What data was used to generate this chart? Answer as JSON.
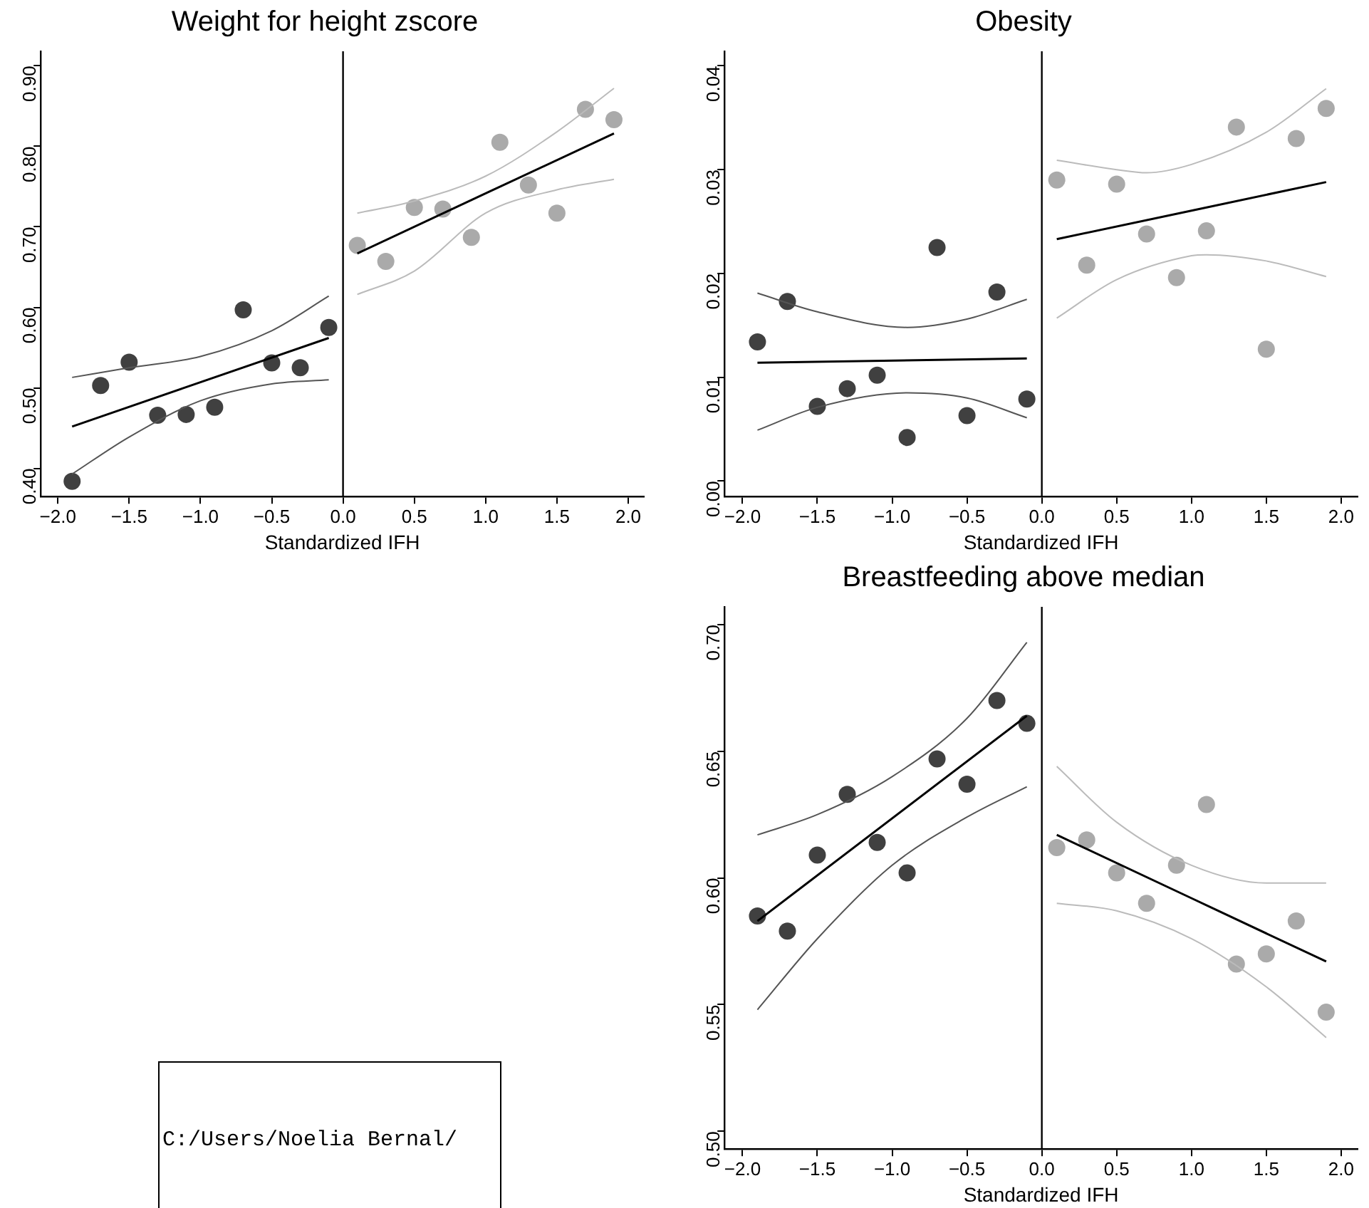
{
  "chart_data": [
    {
      "type": "scatter",
      "title": "Weight for height zscore",
      "xlabel": "Standardized IFH",
      "grid": false,
      "legend": false,
      "xlim": [
        -2.12,
        2.11
      ],
      "ylim": [
        0.365,
        0.918
      ],
      "xticks": [
        {
          "value": -2,
          "label": "−2.0"
        },
        {
          "value": -1.5,
          "label": "−1.5"
        },
        {
          "value": -1,
          "label": "−1.0"
        },
        {
          "value": -0.5,
          "label": "−0.5"
        },
        {
          "value": 0,
          "label": "0.0"
        },
        {
          "value": 0.5,
          "label": "0.5"
        },
        {
          "value": 1,
          "label": "1.0"
        },
        {
          "value": 1.5,
          "label": "1.5"
        },
        {
          "value": 2,
          "label": "2.0"
        }
      ],
      "yticks": [
        {
          "value": 0.4,
          "label": "0.40"
        },
        {
          "value": 0.5,
          "label": "0.50"
        },
        {
          "value": 0.6,
          "label": "0.60"
        },
        {
          "value": 0.7,
          "label": "0.70"
        },
        {
          "value": 0.8,
          "label": "0.80"
        },
        {
          "value": 0.9,
          "label": "0.90"
        }
      ],
      "ref_lines": [
        {
          "axis": "x",
          "value": 0,
          "color": "#000000"
        }
      ],
      "series": [
        {
          "type": "scatter",
          "marker": "circle",
          "color": "#404040",
          "x": [
            -1.9,
            -1.7,
            -1.5,
            -1.3,
            -1.1,
            -0.9,
            -0.7,
            -0.5,
            -0.3,
            -0.1
          ],
          "values": [
            0.384,
            0.503,
            0.532,
            0.466,
            0.467,
            0.476,
            0.597,
            0.531,
            0.525,
            0.575
          ]
        },
        {
          "type": "scatter",
          "marker": "circle",
          "color": "#aaaaaa",
          "x": [
            0.1,
            0.3,
            0.5,
            0.7,
            0.9,
            1.1,
            1.3,
            1.5,
            1.7,
            1.9
          ],
          "values": [
            0.677,
            0.657,
            0.724,
            0.722,
            0.687,
            0.805,
            0.752,
            0.717,
            0.846,
            0.833
          ]
        },
        {
          "type": "line",
          "marker": "none",
          "color": "#555555",
          "x": [
            -1.9,
            -1.5,
            -1,
            -0.5,
            -0.1
          ],
          "values": [
            0.513,
            0.525,
            0.539,
            0.571,
            0.614
          ]
        },
        {
          "type": "line",
          "marker": "none",
          "color": "#555555",
          "x": [
            -1.9,
            -1.5,
            -1,
            -0.5,
            -0.1
          ],
          "values": [
            0.393,
            0.439,
            0.484,
            0.505,
            0.51
          ]
        },
        {
          "type": "line",
          "marker": "none",
          "color": "#bbbbbb",
          "x": [
            0.1,
            0.5,
            1,
            1.5,
            1.9
          ],
          "values": [
            0.717,
            0.732,
            0.763,
            0.818,
            0.872
          ]
        },
        {
          "type": "line",
          "marker": "none",
          "color": "#bbbbbb",
          "x": [
            0.1,
            0.5,
            1,
            1.5,
            1.9
          ],
          "values": [
            0.616,
            0.645,
            0.717,
            0.746,
            0.759
          ]
        },
        {
          "type": "line",
          "marker": "none",
          "color": "#000000",
          "x": [
            -1.9,
            -0.1
          ],
          "values": [
            0.452,
            0.562
          ]
        },
        {
          "type": "line",
          "marker": "none",
          "color": "#000000",
          "x": [
            0.1,
            1.9
          ],
          "values": [
            0.667,
            0.816
          ]
        }
      ]
    },
    {
      "type": "scatter",
      "title": "Obesity",
      "xlabel": "Standardized IFH",
      "grid": false,
      "legend": false,
      "xlim": [
        -2.12,
        2.11
      ],
      "ylim": [
        -0.0015,
        0.0414
      ],
      "xticks": [
        {
          "value": -2,
          "label": "−2.0"
        },
        {
          "value": -1.5,
          "label": "−1.5"
        },
        {
          "value": -1,
          "label": "−1.0"
        },
        {
          "value": -0.5,
          "label": "−0.5"
        },
        {
          "value": 0,
          "label": "0.0"
        },
        {
          "value": 0.5,
          "label": "0.5"
        },
        {
          "value": 1,
          "label": "1.0"
        },
        {
          "value": 1.5,
          "label": "1.5"
        },
        {
          "value": 2,
          "label": "2.0"
        }
      ],
      "yticks": [
        {
          "value": 0,
          "label": "0.00"
        },
        {
          "value": 0.01,
          "label": "0.01"
        },
        {
          "value": 0.02,
          "label": "0.02"
        },
        {
          "value": 0.03,
          "label": "0.03"
        },
        {
          "value": 0.04,
          "label": "0.04"
        }
      ],
      "ref_lines": [
        {
          "axis": "x",
          "value": 0,
          "color": "#000000"
        }
      ],
      "series": [
        {
          "type": "scatter",
          "marker": "circle",
          "color": "#404040",
          "x": [
            -1.9,
            -1.7,
            -1.5,
            -1.3,
            -1.1,
            -0.9,
            -0.7,
            -0.5,
            -0.3,
            -0.1
          ],
          "values": [
            0.0134,
            0.0173,
            0.0072,
            0.0089,
            0.0102,
            0.0042,
            0.0225,
            0.0063,
            0.0182,
            0.0079
          ]
        },
        {
          "type": "scatter",
          "marker": "circle",
          "color": "#aaaaaa",
          "x": [
            0.1,
            0.3,
            0.5,
            0.7,
            0.9,
            1.1,
            1.3,
            1.5,
            1.7,
            1.9
          ],
          "values": [
            0.029,
            0.0208,
            0.0286,
            0.0238,
            0.0196,
            0.0241,
            0.0341,
            0.0127,
            0.033,
            0.0359
          ]
        },
        {
          "type": "line",
          "marker": "none",
          "color": "#555555",
          "x": [
            -1.9,
            -1.5,
            -0.9,
            -0.5,
            -0.1
          ],
          "values": [
            0.0181,
            0.0163,
            0.0148,
            0.0156,
            0.0175
          ]
        },
        {
          "type": "line",
          "marker": "none",
          "color": "#555555",
          "x": [
            -1.9,
            -1.5,
            -0.9,
            -0.5,
            -0.1
          ],
          "values": [
            0.0049,
            0.0071,
            0.0085,
            0.008,
            0.0061
          ]
        },
        {
          "type": "line",
          "marker": "none",
          "color": "#bbbbbb",
          "x": [
            0.1,
            0.5,
            0.7,
            1,
            1.5,
            1.9
          ],
          "values": [
            0.0309,
            0.03,
            0.0297,
            0.0305,
            0.0336,
            0.0378
          ]
        },
        {
          "type": "line",
          "marker": "none",
          "color": "#bbbbbb",
          "x": [
            0.1,
            0.5,
            1,
            1.1,
            1.5,
            1.9
          ],
          "values": [
            0.0157,
            0.0194,
            0.0217,
            0.0218,
            0.0212,
            0.0197
          ]
        },
        {
          "type": "line",
          "marker": "none",
          "color": "#000000",
          "x": [
            -1.9,
            -0.1
          ],
          "values": [
            0.0114,
            0.0118
          ]
        },
        {
          "type": "line",
          "marker": "none",
          "color": "#000000",
          "x": [
            0.1,
            1.9
          ],
          "values": [
            0.0233,
            0.0288
          ]
        }
      ]
    },
    {
      "type": "other",
      "annotations": [
        "C:/Users/Noelia Bernal/"
      ]
    },
    {
      "type": "scatter",
      "title": "Breastfeeding above median",
      "xlabel": "Standardized IFH",
      "grid": false,
      "legend": false,
      "xlim": [
        -2.12,
        2.11
      ],
      "ylim": [
        0.493,
        0.707
      ],
      "xticks": [
        {
          "value": -2,
          "label": "−2.0"
        },
        {
          "value": -1.5,
          "label": "−1.5"
        },
        {
          "value": -1,
          "label": "−1.0"
        },
        {
          "value": -0.5,
          "label": "−0.5"
        },
        {
          "value": 0,
          "label": "0.0"
        },
        {
          "value": 0.5,
          "label": "0.5"
        },
        {
          "value": 1,
          "label": "1.0"
        },
        {
          "value": 1.5,
          "label": "1.5"
        },
        {
          "value": 2,
          "label": "2.0"
        }
      ],
      "yticks": [
        {
          "value": 0.5,
          "label": "0.50"
        },
        {
          "value": 0.55,
          "label": "0.55"
        },
        {
          "value": 0.6,
          "label": "0.60"
        },
        {
          "value": 0.65,
          "label": "0.65"
        },
        {
          "value": 0.7,
          "label": "0.70"
        }
      ],
      "ref_lines": [
        {
          "axis": "x",
          "value": 0,
          "color": "#000000"
        }
      ],
      "series": [
        {
          "type": "scatter",
          "marker": "circle",
          "color": "#404040",
          "x": [
            -1.9,
            -1.7,
            -1.5,
            -1.3,
            -1.1,
            -0.9,
            -0.7,
            -0.5,
            -0.3,
            -0.1
          ],
          "values": [
            0.585,
            0.579,
            0.609,
            0.633,
            0.614,
            0.602,
            0.647,
            0.637,
            0.67,
            0.661
          ]
        },
        {
          "type": "scatter",
          "marker": "circle",
          "color": "#aaaaaa",
          "x": [
            0.1,
            0.3,
            0.5,
            0.7,
            0.9,
            1.1,
            1.3,
            1.5,
            1.7,
            1.9
          ],
          "values": [
            0.612,
            0.615,
            0.602,
            0.59,
            0.605,
            0.629,
            0.566,
            0.57,
            0.583,
            0.547
          ]
        },
        {
          "type": "line",
          "marker": "none",
          "color": "#555555",
          "x": [
            -1.9,
            -1.5,
            -1,
            -0.5,
            -0.1
          ],
          "values": [
            0.617,
            0.625,
            0.64,
            0.663,
            0.693
          ]
        },
        {
          "type": "line",
          "marker": "none",
          "color": "#555555",
          "x": [
            -1.9,
            -1.5,
            -1,
            -0.5,
            -0.1
          ],
          "values": [
            0.548,
            0.576,
            0.605,
            0.624,
            0.636
          ]
        },
        {
          "type": "line",
          "marker": "none",
          "color": "#bbbbbb",
          "x": [
            0.1,
            0.5,
            1,
            1.5,
            1.9
          ],
          "values": [
            0.644,
            0.622,
            0.605,
            0.598,
            0.598
          ]
        },
        {
          "type": "line",
          "marker": "none",
          "color": "#bbbbbb",
          "x": [
            0.1,
            0.5,
            1,
            1.5,
            1.9
          ],
          "values": [
            0.59,
            0.587,
            0.576,
            0.557,
            0.537
          ]
        },
        {
          "type": "line",
          "marker": "none",
          "color": "#000000",
          "x": [
            -1.9,
            -0.1
          ],
          "values": [
            0.583,
            0.664
          ]
        },
        {
          "type": "line",
          "marker": "none",
          "color": "#000000",
          "x": [
            0.1,
            1.9
          ],
          "values": [
            0.617,
            0.567
          ]
        }
      ]
    }
  ]
}
